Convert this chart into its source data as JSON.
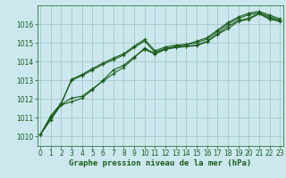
{
  "title": "Graphe pression niveau de la mer (hPa)",
  "background_color": "#cce8ee",
  "grid_color": "#aacccc",
  "line_color": "#1a5c1a",
  "ylim": [
    1009.5,
    1017.0
  ],
  "yticks": [
    1010,
    1011,
    1012,
    1013,
    1014,
    1015,
    1016
  ],
  "xlim": [
    -0.3,
    23.3
  ],
  "xticks": [
    0,
    1,
    2,
    3,
    4,
    5,
    6,
    7,
    8,
    9,
    10,
    11,
    12,
    13,
    14,
    15,
    16,
    17,
    18,
    19,
    20,
    21,
    22,
    23
  ],
  "series": [
    [
      1010.1,
      1010.9,
      1011.7,
      1011.85,
      1012.05,
      1012.5,
      1013.0,
      1013.55,
      1013.8,
      1014.25,
      1014.65,
      1014.4,
      1014.65,
      1014.75,
      1014.8,
      1014.85,
      1015.05,
      1015.45,
      1015.75,
      1016.15,
      1016.25,
      1016.55,
      1016.25,
      1016.15
    ],
    [
      1010.1,
      1011.05,
      1011.75,
      1013.0,
      1013.25,
      1013.55,
      1013.85,
      1014.1,
      1014.35,
      1014.75,
      1015.1,
      1014.5,
      1014.7,
      1014.8,
      1014.9,
      1015.0,
      1015.2,
      1015.6,
      1016.0,
      1016.3,
      1016.5,
      1016.6,
      1016.4,
      1016.2
    ],
    [
      1010.1,
      1010.95,
      1011.72,
      1012.05,
      1012.15,
      1012.55,
      1012.95,
      1013.35,
      1013.7,
      1014.2,
      1014.72,
      1014.43,
      1014.68,
      1014.78,
      1014.82,
      1014.88,
      1015.08,
      1015.48,
      1015.88,
      1016.18,
      1016.32,
      1016.58,
      1016.32,
      1016.18
    ],
    [
      1010.1,
      1011.1,
      1011.78,
      1013.05,
      1013.32,
      1013.62,
      1013.92,
      1014.18,
      1014.42,
      1014.82,
      1015.18,
      1014.58,
      1014.78,
      1014.88,
      1014.92,
      1015.08,
      1015.28,
      1015.68,
      1016.08,
      1016.38,
      1016.58,
      1016.68,
      1016.48,
      1016.28
    ]
  ],
  "tick_fontsize": 5.5,
  "title_fontsize": 6.5
}
